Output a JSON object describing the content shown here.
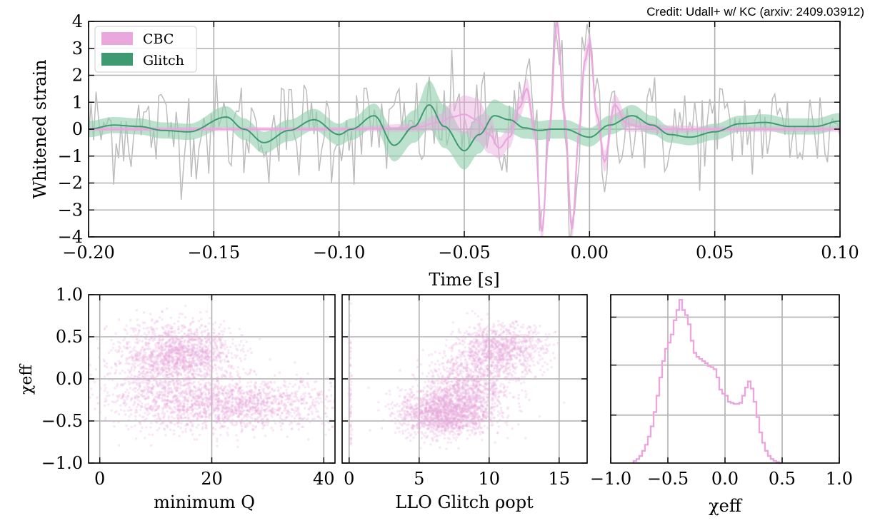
{
  "credit": "Credit: Udall+ w/ KC (arxiv: 2409.03912)",
  "colors": {
    "cbc": "#e9a7dd",
    "glitch": "#3f9a72",
    "glitch_band": "#8fcfae",
    "data": "#bdbdbd",
    "grid": "#b0b0b0"
  },
  "chart_data": [
    {
      "type": "line",
      "panel": "whitened-strain",
      "xlabel": "Time [s]",
      "ylabel": "Whitened strain",
      "xlim": [
        -0.2,
        0.1
      ],
      "ylim": [
        -4,
        4
      ],
      "xticks": [
        -0.2,
        -0.15,
        -0.1,
        -0.05,
        0.0,
        0.05,
        0.1
      ],
      "xtick_labels": [
        "−0.20",
        "−0.15",
        "−0.10",
        "−0.05",
        "0.00",
        "0.05",
        "0.10"
      ],
      "yticks": [
        -4,
        -3,
        -2,
        -1,
        0,
        1,
        2,
        3,
        4
      ],
      "ytick_labels": [
        "−4",
        "−3",
        "−2",
        "−1",
        "0",
        "1",
        "2",
        "3",
        "4"
      ],
      "grid": true,
      "legend": "top-left",
      "legend_entries": [
        "CBC",
        "Glitch"
      ],
      "series": [
        {
          "name": "CBC",
          "style": "line+band",
          "x": [
            -0.2,
            -0.15,
            -0.1,
            -0.07,
            -0.06,
            -0.055,
            -0.05,
            -0.045,
            -0.04,
            -0.036,
            -0.032,
            -0.028,
            -0.025,
            -0.022,
            -0.019,
            -0.016,
            -0.013,
            -0.01,
            -0.007,
            -0.004,
            -0.002,
            0.0,
            0.003,
            0.006,
            0.01,
            0.015,
            0.02,
            0.03,
            0.05,
            0.1
          ],
          "values": [
            0.0,
            0.0,
            0.0,
            0.05,
            0.25,
            0.45,
            0.55,
            0.35,
            -0.2,
            -0.7,
            -0.3,
            0.8,
            1.5,
            0.0,
            -3.8,
            0.0,
            4.0,
            0.5,
            -3.7,
            0.0,
            2.5,
            3.2,
            0.5,
            -1.2,
            0.9,
            0.2,
            0.1,
            0.0,
            0.0,
            0.0
          ],
          "band_halfwidth": [
            0.08,
            0.08,
            0.08,
            0.15,
            0.3,
            0.5,
            0.7,
            0.8,
            0.7,
            0.4,
            0.4,
            0.4,
            0.4,
            0.4,
            0.4,
            0.4,
            0.4,
            0.4,
            0.4,
            0.4,
            0.4,
            0.4,
            0.4,
            0.4,
            0.4,
            0.3,
            0.2,
            0.15,
            0.1,
            0.1
          ]
        },
        {
          "name": "Glitch",
          "style": "line+band",
          "x": [
            -0.2,
            -0.19,
            -0.18,
            -0.17,
            -0.16,
            -0.145,
            -0.138,
            -0.13,
            -0.12,
            -0.11,
            -0.1,
            -0.095,
            -0.086,
            -0.078,
            -0.07,
            -0.064,
            -0.058,
            -0.05,
            -0.044,
            -0.038,
            -0.032,
            -0.026,
            -0.02,
            -0.015,
            -0.01,
            0.0,
            0.008,
            0.017,
            0.025,
            0.032,
            0.04,
            0.05,
            0.06,
            0.07,
            0.08,
            0.09,
            0.1
          ],
          "values": [
            0.0,
            0.15,
            0.1,
            -0.05,
            -0.1,
            0.45,
            0.0,
            -0.5,
            -0.05,
            0.35,
            -0.2,
            0.0,
            0.5,
            -0.6,
            0.1,
            0.9,
            0.1,
            -0.8,
            -0.2,
            0.5,
            0.35,
            0.05,
            -0.05,
            0.0,
            0.0,
            -0.3,
            0.15,
            0.5,
            0.15,
            -0.2,
            -0.3,
            -0.1,
            0.2,
            0.25,
            0.1,
            0.1,
            0.3
          ],
          "band_halfwidth": [
            0.3,
            0.3,
            0.3,
            0.3,
            0.3,
            0.4,
            0.4,
            0.4,
            0.4,
            0.4,
            0.4,
            0.4,
            0.45,
            0.6,
            0.6,
            0.9,
            0.8,
            0.7,
            0.7,
            0.6,
            0.5,
            0.4,
            0.35,
            0.35,
            0.35,
            0.35,
            0.35,
            0.4,
            0.35,
            0.3,
            0.3,
            0.3,
            0.3,
            0.3,
            0.3,
            0.3,
            0.3
          ]
        },
        {
          "style": "noisy-data",
          "x_range": [
            -0.2,
            0.1
          ],
          "n_points": 300,
          "approx_std": 1.0
        }
      ]
    },
    {
      "type": "scatter",
      "panel": "minimum-q",
      "xlabel": "minimum Q",
      "ylabel": "χeff",
      "xlim": [
        -2,
        42
      ],
      "ylim": [
        -1.0,
        1.0
      ],
      "xticks": [
        0,
        20,
        40
      ],
      "xtick_labels": [
        "0",
        "20",
        "40"
      ],
      "yticks": [
        -1.0,
        -0.5,
        0.0,
        0.5,
        1.0
      ],
      "ytick_labels": [
        "−1.0",
        "−0.5",
        "0.0",
        "0.5",
        "1.0"
      ],
      "grid": true,
      "density_clusters": [
        {
          "x_mean": 14,
          "x_std": 5,
          "y_mean": 0.3,
          "y_std": 0.18,
          "weight": 0.4
        },
        {
          "x_mean": 24,
          "x_std": 9,
          "y_mean": -0.3,
          "y_std": 0.15,
          "weight": 0.45
        },
        {
          "x_mean": 10,
          "x_std": 5,
          "y_mean": -0.1,
          "y_std": 0.25,
          "weight": 0.15
        }
      ]
    },
    {
      "type": "scatter",
      "panel": "llo-glitch-rho",
      "xlabel": "LLO Glitch ρopt",
      "xlim": [
        -0.5,
        17
      ],
      "ylim": [
        -1.0,
        1.0
      ],
      "xticks": [
        0,
        5,
        10,
        15
      ],
      "xtick_labels": [
        "0",
        "5",
        "10",
        "15"
      ],
      "yticks": [
        -1.0,
        -0.5,
        0.0,
        0.5,
        1.0
      ],
      "grid": true,
      "density_clusters": [
        {
          "x_mean": 6.8,
          "x_std": 1.6,
          "y_mean": -0.4,
          "y_std": 0.14,
          "weight": 0.45
        },
        {
          "x_mean": 8.5,
          "x_std": 1.6,
          "y_mean": -0.1,
          "y_std": 0.2,
          "weight": 0.25
        },
        {
          "x_mean": 10.8,
          "x_std": 1.6,
          "y_mean": 0.35,
          "y_std": 0.15,
          "weight": 0.28
        },
        {
          "x_mean": 0.1,
          "x_std": 0.05,
          "y_mean": -0.2,
          "y_std": 0.4,
          "weight": 0.02
        }
      ]
    },
    {
      "type": "histogram",
      "panel": "chi-eff-histogram",
      "xlabel": "χeff",
      "xlim": [
        -1.0,
        1.0
      ],
      "xticks": [
        -1.0,
        -0.5,
        0.0,
        0.5,
        1.0
      ],
      "xtick_labels": [
        "−1.0",
        "−0.5",
        "0.0",
        "0.5",
        "1.0"
      ],
      "grid": true,
      "bin_edges_start": -0.8,
      "bin_width": 0.025,
      "counts": [
        0.2,
        0.4,
        0.7,
        1.2,
        1.8,
        2.6,
        3.6,
        5.0,
        6.6,
        8.4,
        10.0,
        11.2,
        11.8,
        12.6,
        14.0,
        15.0,
        16.0,
        15.0,
        14.5,
        13.6,
        12.0,
        10.8,
        10.4,
        10.2,
        10.0,
        9.8,
        9.5,
        9.4,
        9.2,
        8.4,
        7.2,
        6.8,
        6.6,
        6.0,
        5.9,
        5.8,
        5.8,
        5.9,
        6.6,
        7.4,
        8.0,
        7.3,
        6.0,
        4.5,
        3.0,
        2.0,
        1.2,
        0.7,
        0.4,
        0.2,
        0.1,
        0.0
      ],
      "ymax": 16.5
    }
  ]
}
